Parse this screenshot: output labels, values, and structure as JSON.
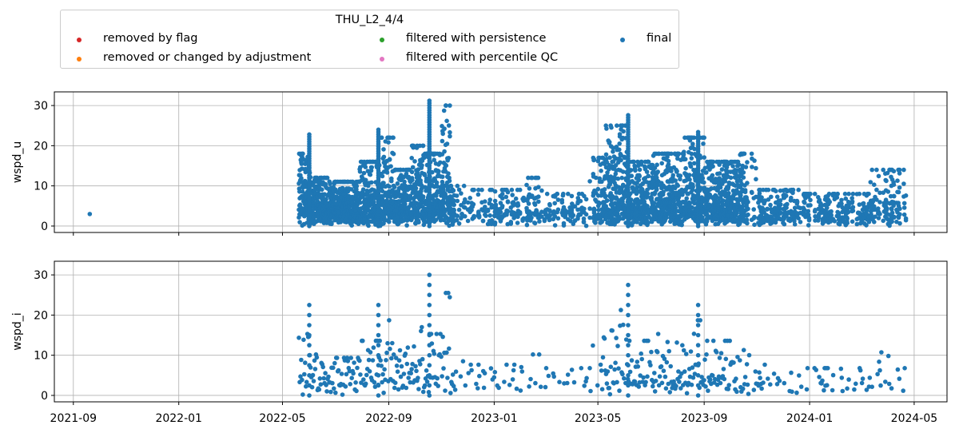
{
  "legend": {
    "title": "THU_L2_4/4",
    "items": [
      {
        "label": "removed by flag",
        "color": "#d62728"
      },
      {
        "label": "removed or changed by adjustment",
        "color": "#ff7f0e"
      },
      {
        "label": "filtered with persistence",
        "color": "#2ca02c"
      },
      {
        "label": "filtered with percentile QC",
        "color": "#e377c2"
      },
      {
        "label": "final",
        "color": "#1f77b4"
      }
    ]
  },
  "chart_data": [
    {
      "type": "scatter",
      "title": "",
      "xlabel": "",
      "ylabel": "wspd_u",
      "xlim": [
        "2021-08-10",
        "2024-06-08"
      ],
      "ylim": [
        -1.6,
        33.4
      ],
      "yticks": [
        0,
        10,
        20,
        30
      ],
      "grid": true,
      "show_xticklabels": false,
      "series": [
        {
          "name": "final",
          "color": "#1f77b4",
          "outlier": {
            "x": "2021-09-20",
            "y": 3
          }
        }
      ]
    },
    {
      "type": "scatter",
      "title": "",
      "xlabel": "",
      "ylabel": "wspd_i",
      "xlim": [
        "2021-08-10",
        "2024-06-08"
      ],
      "ylim": [
        -1.6,
        33.4
      ],
      "yticks": [
        0,
        10,
        20,
        30
      ],
      "grid": true,
      "show_xticklabels": true,
      "series": [
        {
          "name": "final",
          "color": "#1f77b4"
        }
      ]
    }
  ],
  "xticks": [
    "2021-09",
    "2022-01",
    "2022-05",
    "2022-09",
    "2023-01",
    "2023-05",
    "2023-09",
    "2024-01",
    "2024-05"
  ]
}
